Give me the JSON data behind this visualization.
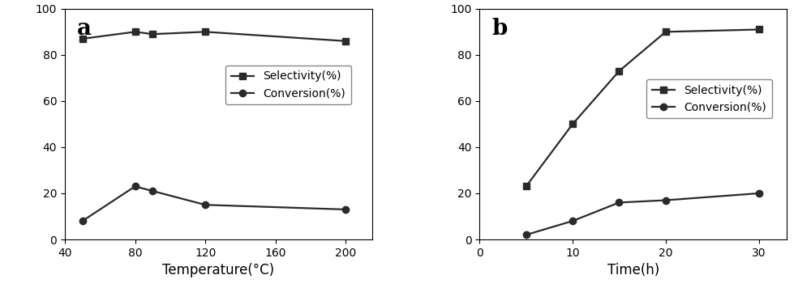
{
  "panel_a": {
    "label": "a",
    "temp_x": [
      50,
      80,
      90,
      120,
      200
    ],
    "selectivity": [
      87,
      90,
      89,
      90,
      86
    ],
    "conversion": [
      8,
      23,
      21,
      15,
      13
    ],
    "xlabel": "Temperature(°C)",
    "xlim": [
      40,
      215
    ],
    "xticks": [
      40,
      80,
      120,
      160,
      200
    ],
    "ylim": [
      0,
      100
    ],
    "yticks": [
      0,
      20,
      40,
      60,
      80,
      100
    ]
  },
  "panel_b": {
    "label": "b",
    "time_x": [
      5,
      10,
      15,
      20,
      30
    ],
    "selectivity": [
      23,
      50,
      73,
      90,
      91
    ],
    "conversion": [
      2,
      8,
      16,
      17,
      20
    ],
    "xlabel": "Time(h)",
    "xlim": [
      0,
      33
    ],
    "xticks": [
      0,
      10,
      20,
      30
    ],
    "ylim": [
      0,
      100
    ],
    "yticks": [
      0,
      20,
      40,
      60,
      80,
      100
    ]
  },
  "legend_selectivity": "Selectivity(%)",
  "legend_conversion": "Conversion(%)",
  "line_color": "#2a2a2a",
  "marker_square": "s",
  "marker_circle": "o",
  "markersize": 6,
  "linewidth": 1.6,
  "label_fontsize": 12,
  "tick_fontsize": 10,
  "legend_fontsize": 10,
  "panel_label_fontsize": 20
}
